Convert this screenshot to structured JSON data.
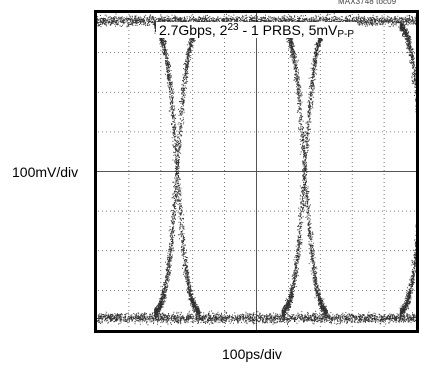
{
  "figure_id": "MAX3748 toc09",
  "chart_data": {
    "type": "scatter",
    "title_parts": {
      "main": "2.7Gbps, 2",
      "exp": "23",
      "mid": " - 1 PRBS, 5mV",
      "sub": "P-P"
    },
    "ylabel": "100mV/div",
    "xlabel": "100ps/div",
    "grid": true,
    "grid_divisions": {
      "x": 10,
      "y": 8
    },
    "xlim": [
      -500,
      500
    ],
    "ylim": [
      -400,
      400
    ],
    "xunit": "ps",
    "yunit": "mV",
    "eye_levels_mV": {
      "high": 380,
      "low": -370
    },
    "crossing_times_ps": [
      -250,
      150
    ],
    "unit_interval_ps": 370,
    "transition_half_width_ps": 55,
    "colors": {
      "trace": "#1a1a1a",
      "frame": "#000000",
      "grid": "#555555",
      "background": "#ffffff"
    }
  }
}
